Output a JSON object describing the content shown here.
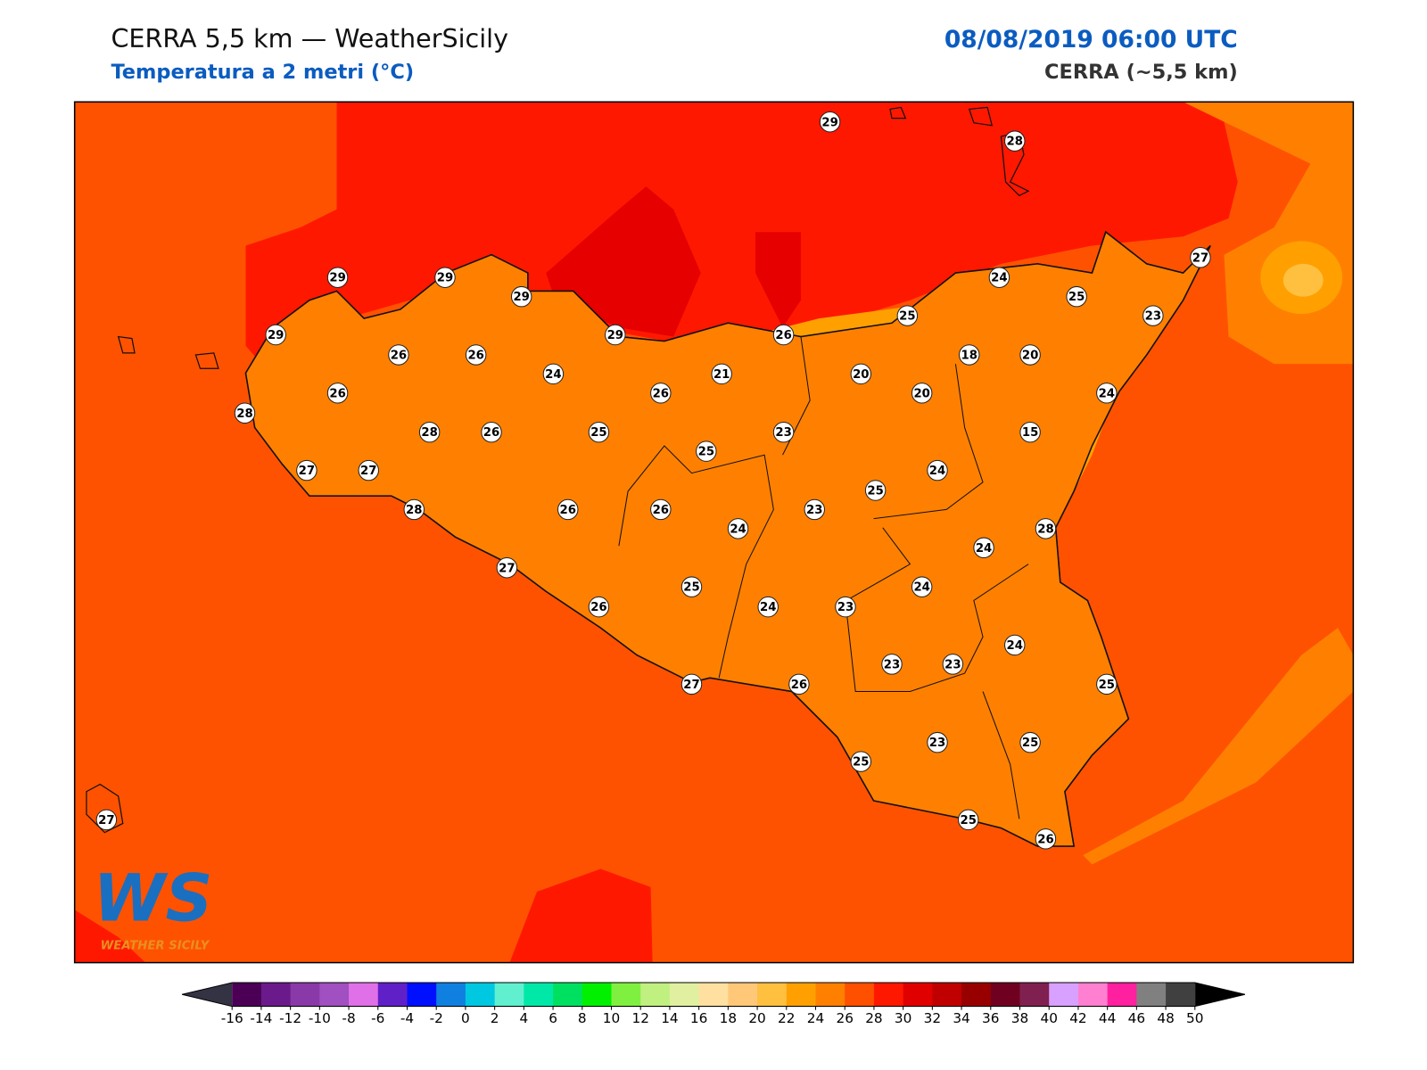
{
  "header": {
    "title": "CERRA 5,5 km — WeatherSicily",
    "subtitle": "Temperatura a 2 metri (°C)",
    "date": "08/08/2019 06:00 UTC",
    "model": "CERRA (~5,5 km)"
  },
  "stations": [
    29,
    28,
    29,
    29,
    29,
    29,
    27,
    24,
    25,
    25,
    23,
    29,
    26,
    26,
    26,
    18,
    20,
    24,
    21,
    20,
    26,
    26,
    20,
    24,
    28,
    28,
    26,
    25,
    23,
    15,
    25,
    27,
    27,
    24,
    25,
    28,
    26,
    26,
    23,
    24,
    28,
    24,
    27,
    25,
    24,
    26,
    24,
    23,
    24,
    23,
    23,
    27,
    26,
    25,
    25,
    23,
    25,
    25,
    26,
    27
  ],
  "colorbar": {
    "ticks": [
      -16,
      -14,
      -12,
      -10,
      -8,
      -6,
      -4,
      -2,
      0,
      2,
      4,
      6,
      8,
      10,
      12,
      14,
      16,
      18,
      20,
      22,
      24,
      26,
      28,
      30,
      32,
      34,
      36,
      38,
      40,
      42,
      44,
      46,
      48,
      50
    ],
    "colors": [
      "#4b0055",
      "#6a1a8a",
      "#8a3aa8",
      "#a050c0",
      "#e070e8",
      "#6020c8",
      "#0010ff",
      "#1080e0",
      "#00c8e0",
      "#60f0d0",
      "#00e8a8",
      "#00e060",
      "#00f000",
      "#80f040",
      "#c0f080",
      "#e0f0a0",
      "#ffe0a0",
      "#ffc878",
      "#ffc040",
      "#ffa000",
      "#ff8000",
      "#ff5000",
      "#ff1800",
      "#e00000",
      "#c00000",
      "#980000",
      "#700020",
      "#802050",
      "#d8a0ff",
      "#ff80d0",
      "#ff20a0",
      "#808080",
      "#404040"
    ],
    "under_color": "#333344",
    "over_color": "#000000"
  },
  "logo": {
    "mark": "WS",
    "text": "WEATHER SICILY"
  }
}
